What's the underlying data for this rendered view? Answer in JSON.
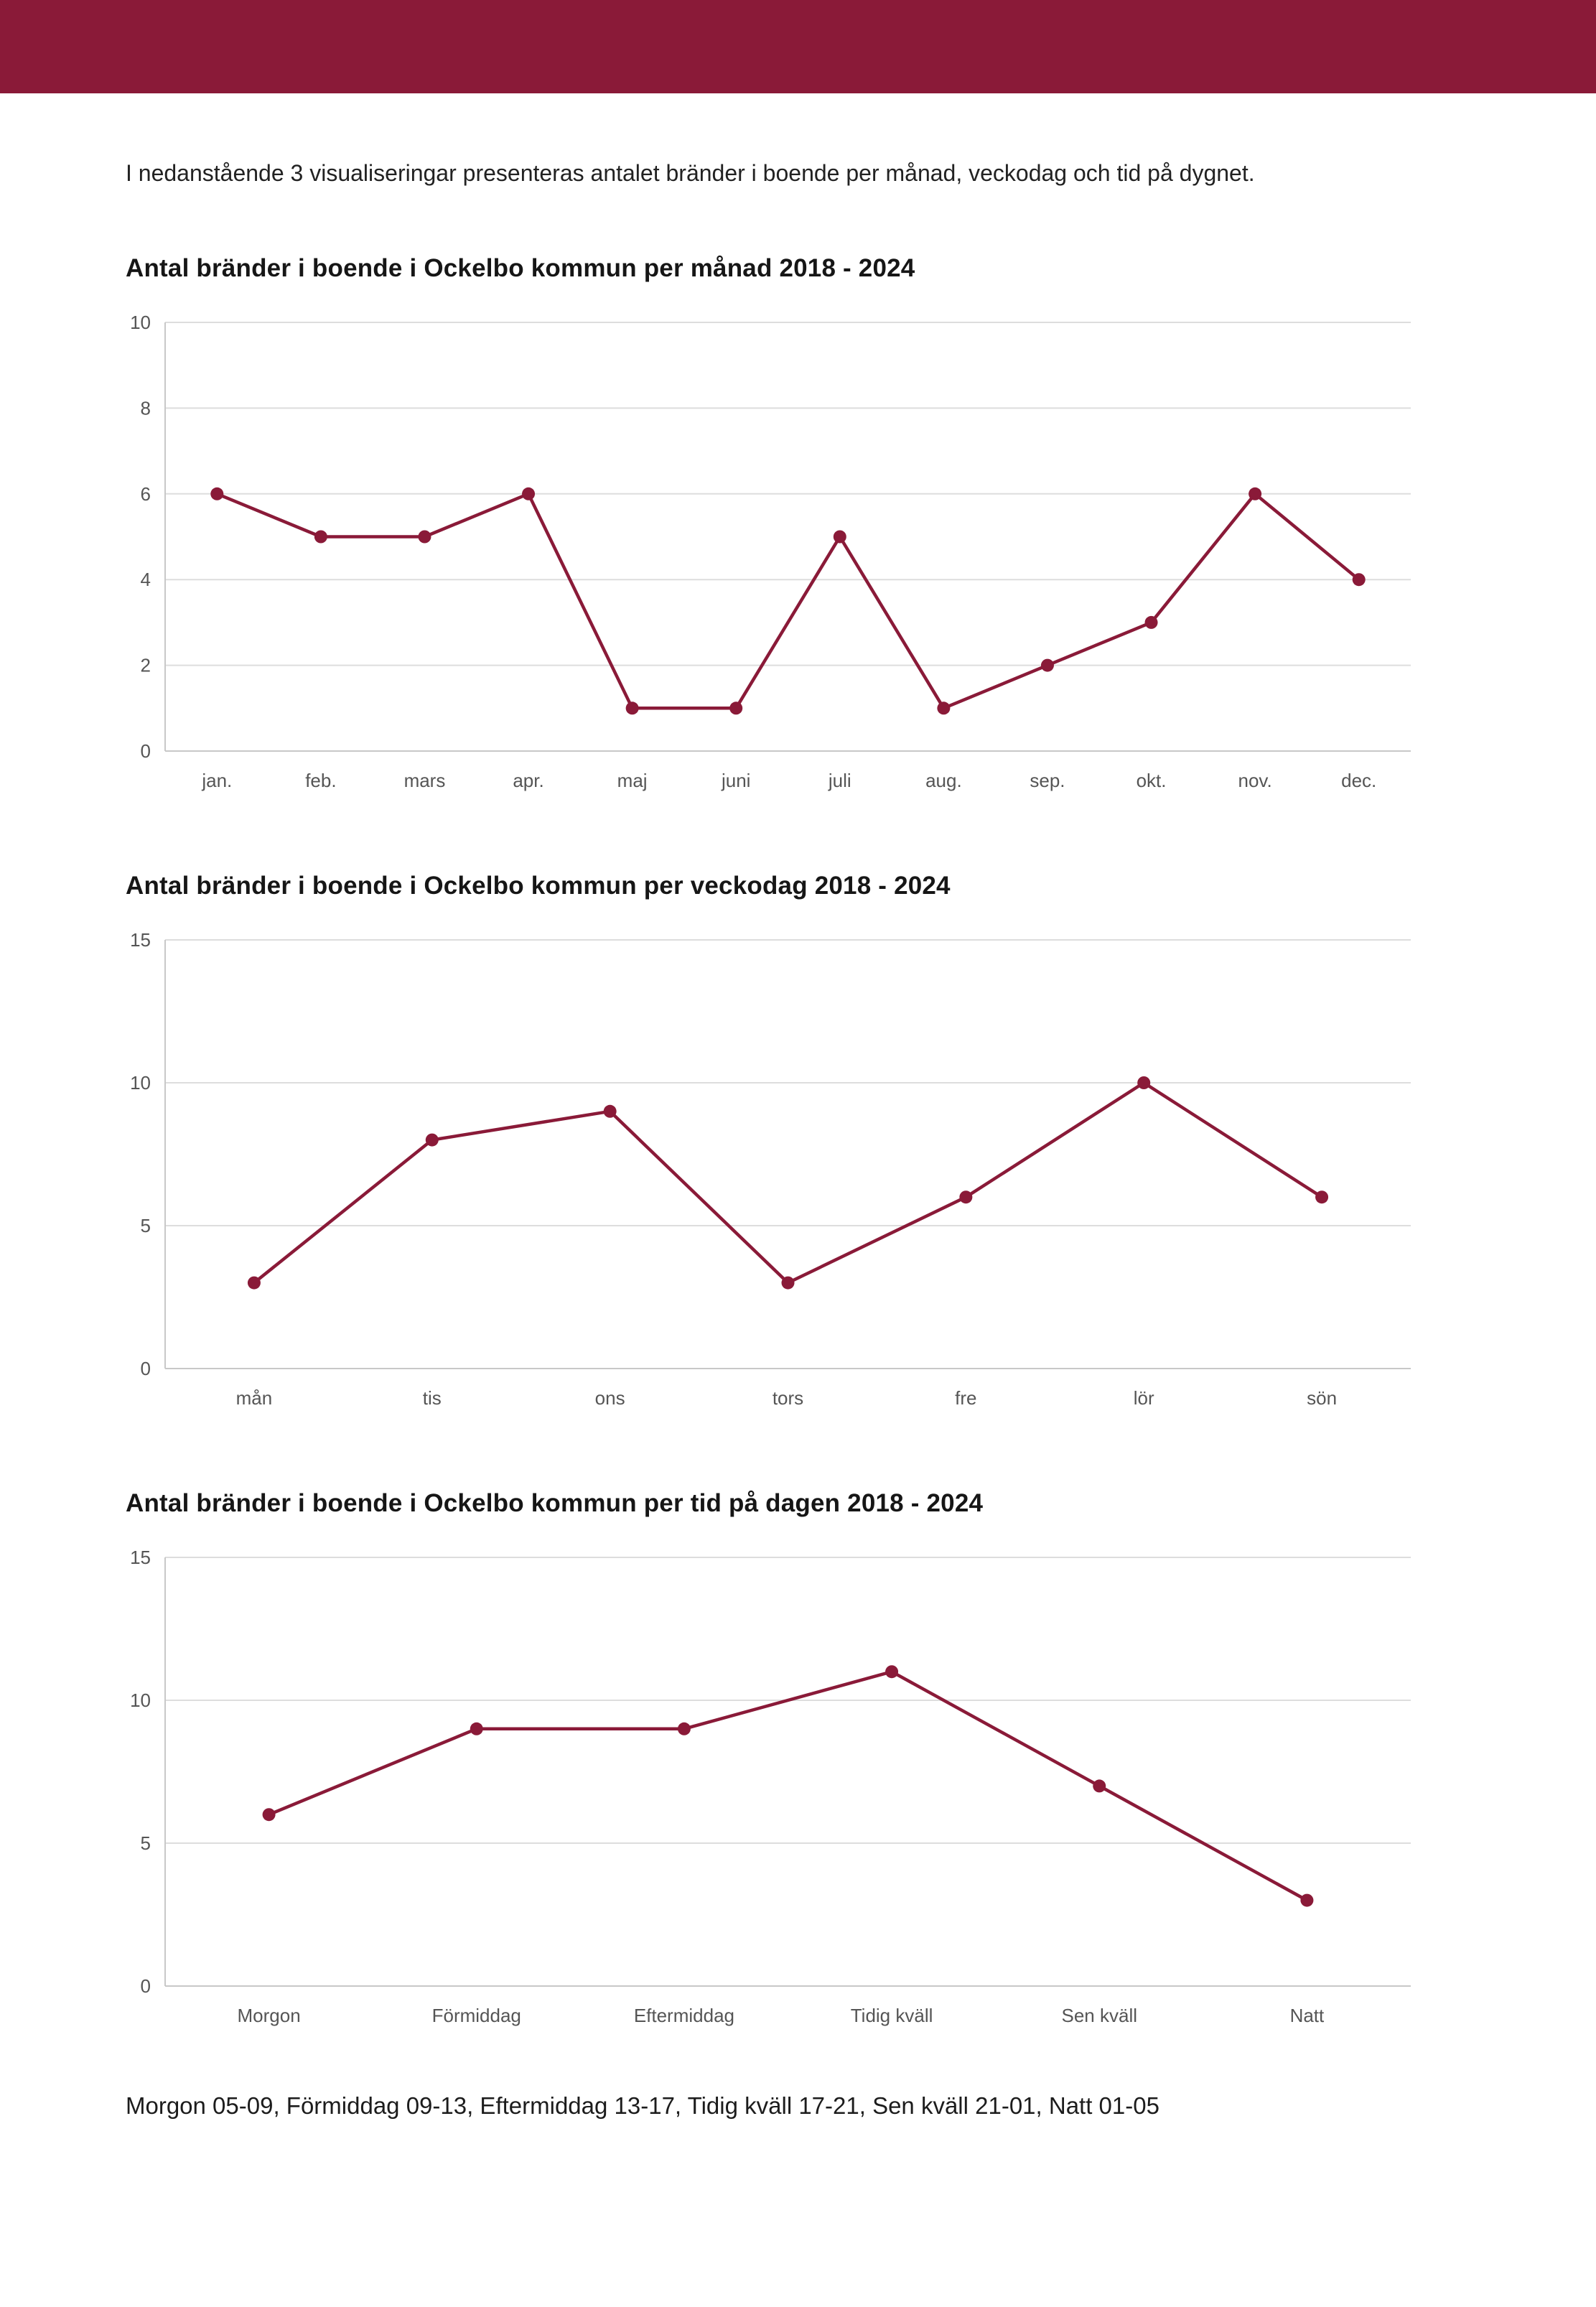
{
  "colors": {
    "accent": "#8A1A38",
    "grid": "#dddddd",
    "axis": "#c8c8c8",
    "tick_text": "#555555",
    "body_text": "#222222"
  },
  "intro": "I nedanstående 3 visualiseringar presenteras antalet bränder i boende per månad, veckodag och tid på dygnet.",
  "footer": "Morgon 05-09, Förmiddag 09-13, Eftermiddag 13-17, Tidig kväll 17-21, Sen kväll 21-01, Natt 01-05",
  "chart_data": [
    {
      "type": "line",
      "title": "Antal bränder i boende i Ockelbo kommun per månad 2018 - 2024",
      "categories": [
        "jan.",
        "feb.",
        "mars",
        "apr.",
        "maj",
        "juni",
        "juli",
        "aug.",
        "sep.",
        "okt.",
        "nov.",
        "dec."
      ],
      "values": [
        6,
        5,
        5,
        6,
        1,
        1,
        5,
        1,
        2,
        3,
        6,
        4
      ],
      "xlabel": "",
      "ylabel": "",
      "ylim": [
        0,
        10
      ],
      "yticks": [
        0,
        2,
        4,
        6,
        8,
        10
      ],
      "grid": true,
      "legend": false
    },
    {
      "type": "line",
      "title": "Antal bränder i boende i Ockelbo kommun per veckodag 2018 - 2024",
      "categories": [
        "mån",
        "tis",
        "ons",
        "tors",
        "fre",
        "lör",
        "sön"
      ],
      "values": [
        3,
        8,
        9,
        3,
        6,
        10,
        6
      ],
      "xlabel": "",
      "ylabel": "",
      "ylim": [
        0,
        15
      ],
      "yticks": [
        0,
        5,
        10,
        15
      ],
      "grid": true,
      "legend": false
    },
    {
      "type": "line",
      "title": "Antal bränder i boende i Ockelbo kommun per tid på dagen 2018 - 2024",
      "categories": [
        "Morgon",
        "Förmiddag",
        "Eftermiddag",
        "Tidig kväll",
        "Sen kväll",
        "Natt"
      ],
      "values": [
        6,
        9,
        9,
        11,
        7,
        3
      ],
      "xlabel": "",
      "ylabel": "",
      "ylim": [
        0,
        15
      ],
      "yticks": [
        0,
        5,
        10,
        15
      ],
      "grid": true,
      "legend": false
    }
  ]
}
